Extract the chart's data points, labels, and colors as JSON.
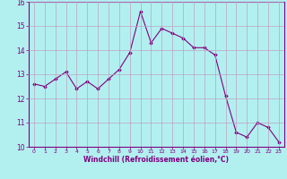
{
  "x": [
    0,
    1,
    2,
    3,
    4,
    5,
    6,
    7,
    8,
    9,
    10,
    11,
    12,
    13,
    14,
    15,
    16,
    17,
    18,
    19,
    20,
    21,
    22,
    23
  ],
  "y": [
    12.6,
    12.5,
    12.8,
    13.1,
    12.4,
    12.7,
    12.4,
    12.8,
    13.2,
    13.9,
    15.6,
    14.3,
    14.9,
    14.7,
    14.5,
    14.1,
    14.1,
    13.8,
    12.1,
    10.6,
    10.4,
    11.0,
    10.8,
    10.2
  ],
  "ylim": [
    10,
    16
  ],
  "xlim": [
    -0.5,
    23.5
  ],
  "yticks": [
    10,
    11,
    12,
    13,
    14,
    15,
    16
  ],
  "xticks": [
    0,
    1,
    2,
    3,
    4,
    5,
    6,
    7,
    8,
    9,
    10,
    11,
    12,
    13,
    14,
    15,
    16,
    17,
    18,
    19,
    20,
    21,
    22,
    23
  ],
  "xlabel": "Windchill (Refroidissement éolien,°C)",
  "line_color": "#800080",
  "marker": "D",
  "marker_size": 1.8,
  "bg_color": "#b2f0f0",
  "grid_color": "#c0a0c0",
  "axis_color": "#800080",
  "tick_color": "#800080",
  "label_color": "#800080"
}
